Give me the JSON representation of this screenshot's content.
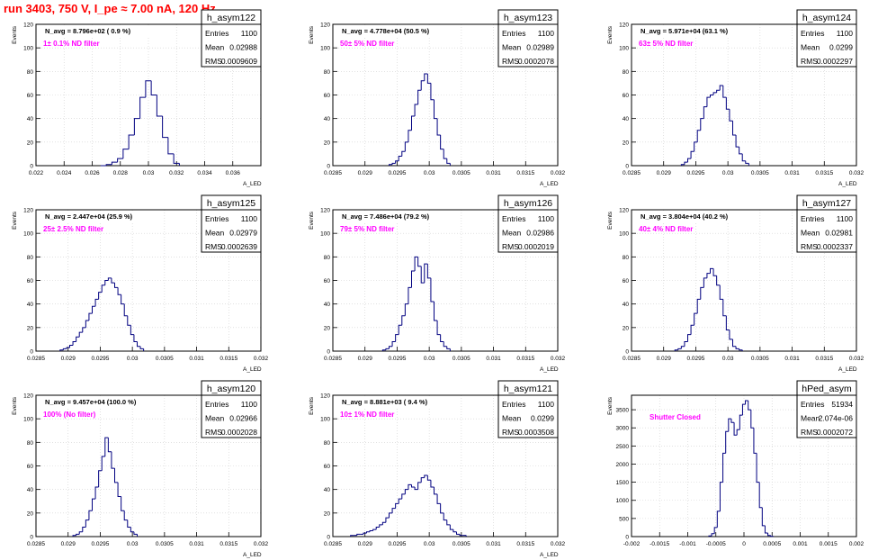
{
  "page": {
    "title": "run 3403,   750 V, I_pe ≈ 7.00 nA, 120 Hz"
  },
  "colors": {
    "title": "#ff0000",
    "annotation": "#ff00ff",
    "line": "#000080",
    "frame": "#000000",
    "grid": "#cfcfcf"
  },
  "chart_data": [
    {
      "type": "bar",
      "name": "h_asym122",
      "avg_label": "N_avg = 8.796e+02 ( 0.9 %)",
      "note": "1± 0.1% ND filter",
      "stats": [
        [
          "Entries",
          "1100"
        ],
        [
          "Mean",
          "0.02988"
        ],
        [
          "RMS",
          "0.0009609"
        ]
      ],
      "ylabel": "Events",
      "xlabel": "A_LED",
      "xlim": [
        0.022,
        0.038
      ],
      "ylim": [
        0,
        120
      ],
      "xticks": [
        "0.022",
        "0.024",
        "0.026",
        "0.028",
        "0.03",
        "0.032",
        "0.034",
        "0.036"
      ],
      "xtick_vals": [
        0.022,
        0.024,
        0.026,
        0.028,
        0.03,
        0.032,
        0.034,
        0.036
      ],
      "yticks": [
        "0",
        "20",
        "40",
        "60",
        "80",
        "100",
        "120"
      ],
      "ytick_vals": [
        0,
        20,
        40,
        60,
        80,
        100,
        120
      ],
      "x": [
        0.0268,
        0.0272,
        0.0276,
        0.028,
        0.0284,
        0.0288,
        0.0292,
        0.0296,
        0.03,
        0.0304,
        0.0308,
        0.0312,
        0.0316,
        0.032
      ],
      "values": [
        0,
        1,
        3,
        6,
        14,
        26,
        40,
        58,
        72,
        60,
        42,
        24,
        10,
        2
      ]
    },
    {
      "type": "bar",
      "name": "h_asym123",
      "avg_label": "N_avg = 4.778e+04 (50.5 %)",
      "note": "50± 5% ND filter",
      "stats": [
        [
          "Entries",
          "1100"
        ],
        [
          "Mean",
          "0.02989"
        ],
        [
          "RMS",
          "0.0002078"
        ]
      ],
      "ylabel": "Events",
      "xlabel": "A_LED",
      "xlim": [
        0.0285,
        0.032
      ],
      "ylim": [
        0,
        120
      ],
      "xticks": [
        "0.0285",
        "0.029",
        "0.0295",
        "0.03",
        "0.0305",
        "0.031",
        "0.0315",
        "0.032"
      ],
      "xtick_vals": [
        0.0285,
        0.029,
        0.0295,
        0.03,
        0.0305,
        0.031,
        0.0315,
        0.032
      ],
      "yticks": [
        "0",
        "20",
        "40",
        "60",
        "80",
        "100",
        "120"
      ],
      "ytick_vals": [
        0,
        20,
        40,
        60,
        80,
        100,
        120
      ],
      "x": [
        0.0294,
        0.02945,
        0.0295,
        0.02955,
        0.0296,
        0.02965,
        0.0297,
        0.02975,
        0.0298,
        0.02985,
        0.0299,
        0.02995,
        0.03,
        0.03005,
        0.0301,
        0.03015,
        0.0302,
        0.03025,
        0.0303
      ],
      "values": [
        1,
        2,
        4,
        8,
        12,
        20,
        30,
        42,
        52,
        64,
        72,
        78,
        70,
        56,
        40,
        26,
        14,
        6,
        2
      ]
    },
    {
      "type": "bar",
      "name": "h_asym124",
      "avg_label": "N_avg = 5.971e+04 (63.1 %)",
      "note": "63± 5% ND filter",
      "stats": [
        [
          "Entries",
          "1100"
        ],
        [
          "Mean",
          "0.0299"
        ],
        [
          "RMS",
          "0.0002297"
        ]
      ],
      "ylabel": "Events",
      "xlabel": "A_LED",
      "xlim": [
        0.0285,
        0.032
      ],
      "ylim": [
        0,
        120
      ],
      "xticks": [
        "0.0285",
        "0.029",
        "0.0295",
        "0.03",
        "0.0305",
        "0.031",
        "0.0315",
        "0.032"
      ],
      "xtick_vals": [
        0.0285,
        0.029,
        0.0295,
        0.03,
        0.0305,
        0.031,
        0.0315,
        0.032
      ],
      "yticks": [
        "0",
        "20",
        "40",
        "60",
        "80",
        "100",
        "120"
      ],
      "ytick_vals": [
        0,
        20,
        40,
        60,
        80,
        100,
        120
      ],
      "x": [
        0.0293,
        0.02935,
        0.0294,
        0.02945,
        0.0295,
        0.02955,
        0.0296,
        0.02965,
        0.0297,
        0.02975,
        0.0298,
        0.02985,
        0.0299,
        0.02995,
        0.03,
        0.03005,
        0.0301,
        0.03015,
        0.0302,
        0.03025,
        0.0303
      ],
      "values": [
        1,
        3,
        6,
        12,
        20,
        30,
        40,
        50,
        58,
        60,
        62,
        64,
        68,
        58,
        48,
        38,
        26,
        16,
        10,
        4,
        2
      ]
    },
    {
      "type": "bar",
      "name": "h_asym125",
      "avg_label": "N_avg = 2.447e+04 (25.9 %)",
      "note": "25± 2.5% ND filter",
      "stats": [
        [
          "Entries",
          "1100"
        ],
        [
          "Mean",
          "0.02979"
        ],
        [
          "RMS",
          "0.0002639"
        ]
      ],
      "ylabel": "Events",
      "xlabel": "A_LED",
      "xlim": [
        0.0285,
        0.032
      ],
      "ylim": [
        0,
        120
      ],
      "xticks": [
        "0.0285",
        "0.029",
        "0.0295",
        "0.03",
        "0.0305",
        "0.031",
        "0.0315",
        "0.032"
      ],
      "xtick_vals": [
        0.0285,
        0.029,
        0.0295,
        0.03,
        0.0305,
        0.031,
        0.0315,
        0.032
      ],
      "yticks": [
        "0",
        "20",
        "40",
        "60",
        "80",
        "100",
        "120"
      ],
      "ytick_vals": [
        0,
        20,
        40,
        60,
        80,
        100,
        120
      ],
      "x": [
        0.0289,
        0.02895,
        0.029,
        0.02905,
        0.0291,
        0.02915,
        0.0292,
        0.02925,
        0.0293,
        0.02935,
        0.0294,
        0.02945,
        0.0295,
        0.02955,
        0.0296,
        0.02965,
        0.0297,
        0.02975,
        0.0298,
        0.02985,
        0.0299,
        0.02995,
        0.03,
        0.03005,
        0.0301,
        0.03015
      ],
      "values": [
        1,
        2,
        3,
        5,
        8,
        12,
        16,
        20,
        26,
        32,
        38,
        44,
        50,
        56,
        60,
        62,
        58,
        54,
        48,
        40,
        30,
        22,
        14,
        8,
        4,
        2
      ]
    },
    {
      "type": "bar",
      "name": "h_asym126",
      "avg_label": "N_avg = 7.486e+04 (79.2 %)",
      "note": "79± 5% ND filter",
      "stats": [
        [
          "Entries",
          "1100"
        ],
        [
          "Mean",
          "0.02986"
        ],
        [
          "RMS",
          "0.0002019"
        ]
      ],
      "ylabel": "Events",
      "xlabel": "A_LED",
      "xlim": [
        0.0285,
        0.032
      ],
      "ylim": [
        0,
        120
      ],
      "xticks": [
        "0.0285",
        "0.029",
        "0.0295",
        "0.03",
        "0.0305",
        "0.031",
        "0.0315",
        "0.032"
      ],
      "xtick_vals": [
        0.0285,
        0.029,
        0.0295,
        0.03,
        0.0305,
        0.031,
        0.0315,
        0.032
      ],
      "yticks": [
        "0",
        "20",
        "40",
        "60",
        "80",
        "100",
        "120"
      ],
      "ytick_vals": [
        0,
        20,
        40,
        60,
        80,
        100,
        120
      ],
      "x": [
        0.0293,
        0.02935,
        0.0294,
        0.02945,
        0.0295,
        0.02955,
        0.0296,
        0.02965,
        0.0297,
        0.02975,
        0.0298,
        0.02985,
        0.0299,
        0.02995,
        0.03,
        0.03005,
        0.0301,
        0.03015,
        0.0302,
        0.03025,
        0.0303
      ],
      "values": [
        1,
        2,
        4,
        8,
        14,
        22,
        30,
        40,
        54,
        68,
        80,
        72,
        58,
        74,
        62,
        42,
        26,
        14,
        8,
        4,
        2
      ]
    },
    {
      "type": "bar",
      "name": "h_asym127",
      "avg_label": "N_avg = 3.804e+04 (40.2 %)",
      "note": "40± 4% ND filter",
      "stats": [
        [
          "Entries",
          "1100"
        ],
        [
          "Mean",
          "0.02981"
        ],
        [
          "RMS",
          "0.0002337"
        ]
      ],
      "ylabel": "Events",
      "xlabel": "A_LED",
      "xlim": [
        0.0285,
        0.032
      ],
      "ylim": [
        0,
        120
      ],
      "xticks": [
        "0.0285",
        "0.029",
        "0.0295",
        "0.03",
        "0.0305",
        "0.031",
        "0.0315",
        "0.032"
      ],
      "xtick_vals": [
        0.0285,
        0.029,
        0.0295,
        0.03,
        0.0305,
        0.031,
        0.0315,
        0.032
      ],
      "yticks": [
        "0",
        "20",
        "40",
        "60",
        "80",
        "100",
        "120"
      ],
      "ytick_vals": [
        0,
        20,
        40,
        60,
        80,
        100,
        120
      ],
      "x": [
        0.0292,
        0.02925,
        0.0293,
        0.02935,
        0.0294,
        0.02945,
        0.0295,
        0.02955,
        0.0296,
        0.02965,
        0.0297,
        0.02975,
        0.0298,
        0.02985,
        0.0299,
        0.02995,
        0.03,
        0.03005,
        0.0301,
        0.03015,
        0.0302
      ],
      "values": [
        1,
        2,
        4,
        8,
        14,
        22,
        32,
        44,
        54,
        62,
        66,
        70,
        64,
        56,
        44,
        30,
        18,
        10,
        4,
        2,
        1
      ]
    },
    {
      "type": "bar",
      "name": "h_asym120",
      "avg_label": "N_avg = 9.457e+04 (100.0 %)",
      "note": "100% (No filter)",
      "stats": [
        [
          "Entries",
          "1100"
        ],
        [
          "Mean",
          "0.02966"
        ],
        [
          "RMS",
          "0.0002028"
        ]
      ],
      "ylabel": "Events",
      "xlabel": "A_LED",
      "xlim": [
        0.0285,
        0.032
      ],
      "ylim": [
        0,
        120
      ],
      "xticks": [
        "0.0285",
        "0.029",
        "0.0295",
        "0.03",
        "0.0305",
        "0.031",
        "0.0315",
        "0.032"
      ],
      "xtick_vals": [
        0.0285,
        0.029,
        0.0295,
        0.03,
        0.0305,
        0.031,
        0.0315,
        0.032
      ],
      "yticks": [
        "0",
        "20",
        "40",
        "60",
        "80",
        "100",
        "120"
      ],
      "ytick_vals": [
        0,
        20,
        40,
        60,
        80,
        100,
        120
      ],
      "x": [
        0.0291,
        0.02915,
        0.0292,
        0.02925,
        0.0293,
        0.02935,
        0.0294,
        0.02945,
        0.0295,
        0.02955,
        0.0296,
        0.02965,
        0.0297,
        0.02975,
        0.0298,
        0.02985,
        0.0299,
        0.02995,
        0.03,
        0.03005
      ],
      "values": [
        1,
        2,
        4,
        8,
        14,
        22,
        32,
        42,
        56,
        68,
        84,
        72,
        58,
        46,
        34,
        22,
        14,
        8,
        4,
        2
      ]
    },
    {
      "type": "bar",
      "name": "h_asym121",
      "avg_label": "N_avg = 8.881e+03 ( 9.4 %)",
      "note": "10± 1% ND filter",
      "stats": [
        [
          "Entries",
          "1100"
        ],
        [
          "Mean",
          "0.0299"
        ],
        [
          "RMS",
          "0.0003508"
        ]
      ],
      "ylabel": "Events",
      "xlabel": "A_LED",
      "xlim": [
        0.0285,
        0.032
      ],
      "ylim": [
        0,
        120
      ],
      "xticks": [
        "0.0285",
        "0.029",
        "0.0295",
        "0.03",
        "0.0305",
        "0.031",
        "0.0315",
        "0.032"
      ],
      "xtick_vals": [
        0.0285,
        0.029,
        0.0295,
        0.03,
        0.0305,
        0.031,
        0.0315,
        0.032
      ],
      "yticks": [
        "0",
        "20",
        "40",
        "60",
        "80",
        "100",
        "120"
      ],
      "ytick_vals": [
        0,
        20,
        40,
        60,
        80,
        100,
        120
      ],
      "x": [
        0.0288,
        0.02885,
        0.0289,
        0.02895,
        0.029,
        0.02905,
        0.0291,
        0.02915,
        0.0292,
        0.02925,
        0.0293,
        0.02935,
        0.0294,
        0.02945,
        0.0295,
        0.02955,
        0.0296,
        0.02965,
        0.0297,
        0.02975,
        0.0298,
        0.02985,
        0.0299,
        0.02995,
        0.03,
        0.03005,
        0.0301,
        0.03015,
        0.0302,
        0.03025,
        0.0303,
        0.03035,
        0.0304,
        0.03045,
        0.0305,
        0.03055
      ],
      "values": [
        1,
        1,
        2,
        2,
        3,
        4,
        5,
        6,
        8,
        10,
        12,
        16,
        20,
        24,
        28,
        32,
        36,
        40,
        44,
        42,
        40,
        46,
        50,
        52,
        48,
        42,
        36,
        28,
        20,
        14,
        10,
        6,
        4,
        2,
        1,
        1
      ]
    },
    {
      "type": "bar",
      "name": "hPed_asym",
      "avg_label": "",
      "note": "Shutter Closed",
      "stats": [
        [
          "Entries",
          "51934"
        ],
        [
          "Mean",
          "2.074e-06"
        ],
        [
          "RMS",
          "0.0002072"
        ]
      ],
      "ylabel": "Events",
      "xlabel": "",
      "xlim": [
        -0.002,
        0.002
      ],
      "ylim": [
        0,
        3900
      ],
      "xticks": [
        "-0.002",
        "-0.0015",
        "-0.001",
        "-0.0005",
        "0",
        "0.0005",
        "0.001",
        "0.0015",
        "0.002"
      ],
      "xtick_vals": [
        -0.002,
        -0.0015,
        -0.001,
        -0.0005,
        0,
        0.0005,
        0.001,
        0.0015,
        0.002
      ],
      "yticks": [
        "0",
        "500",
        "1000",
        "1500",
        "2000",
        "2500",
        "3000",
        "3500"
      ],
      "ytick_vals": [
        0,
        500,
        1000,
        1500,
        2000,
        2500,
        3000,
        3500
      ],
      "x": [
        -0.0006,
        -0.00055,
        -0.0005,
        -0.00045,
        -0.0004,
        -0.00035,
        -0.0003,
        -0.00025,
        -0.0002,
        -0.00015,
        -0.0001,
        -5e-05,
        0,
        5e-05,
        0.0001,
        0.00015,
        0.0002,
        0.00025,
        0.0003,
        0.00035,
        0.0004,
        0.00045,
        0.0005
      ],
      "values": [
        20,
        80,
        250,
        700,
        1500,
        2300,
        2900,
        3250,
        3150,
        2800,
        2950,
        3350,
        3650,
        3750,
        3500,
        3000,
        2300,
        1500,
        800,
        300,
        100,
        30,
        5
      ]
    }
  ]
}
